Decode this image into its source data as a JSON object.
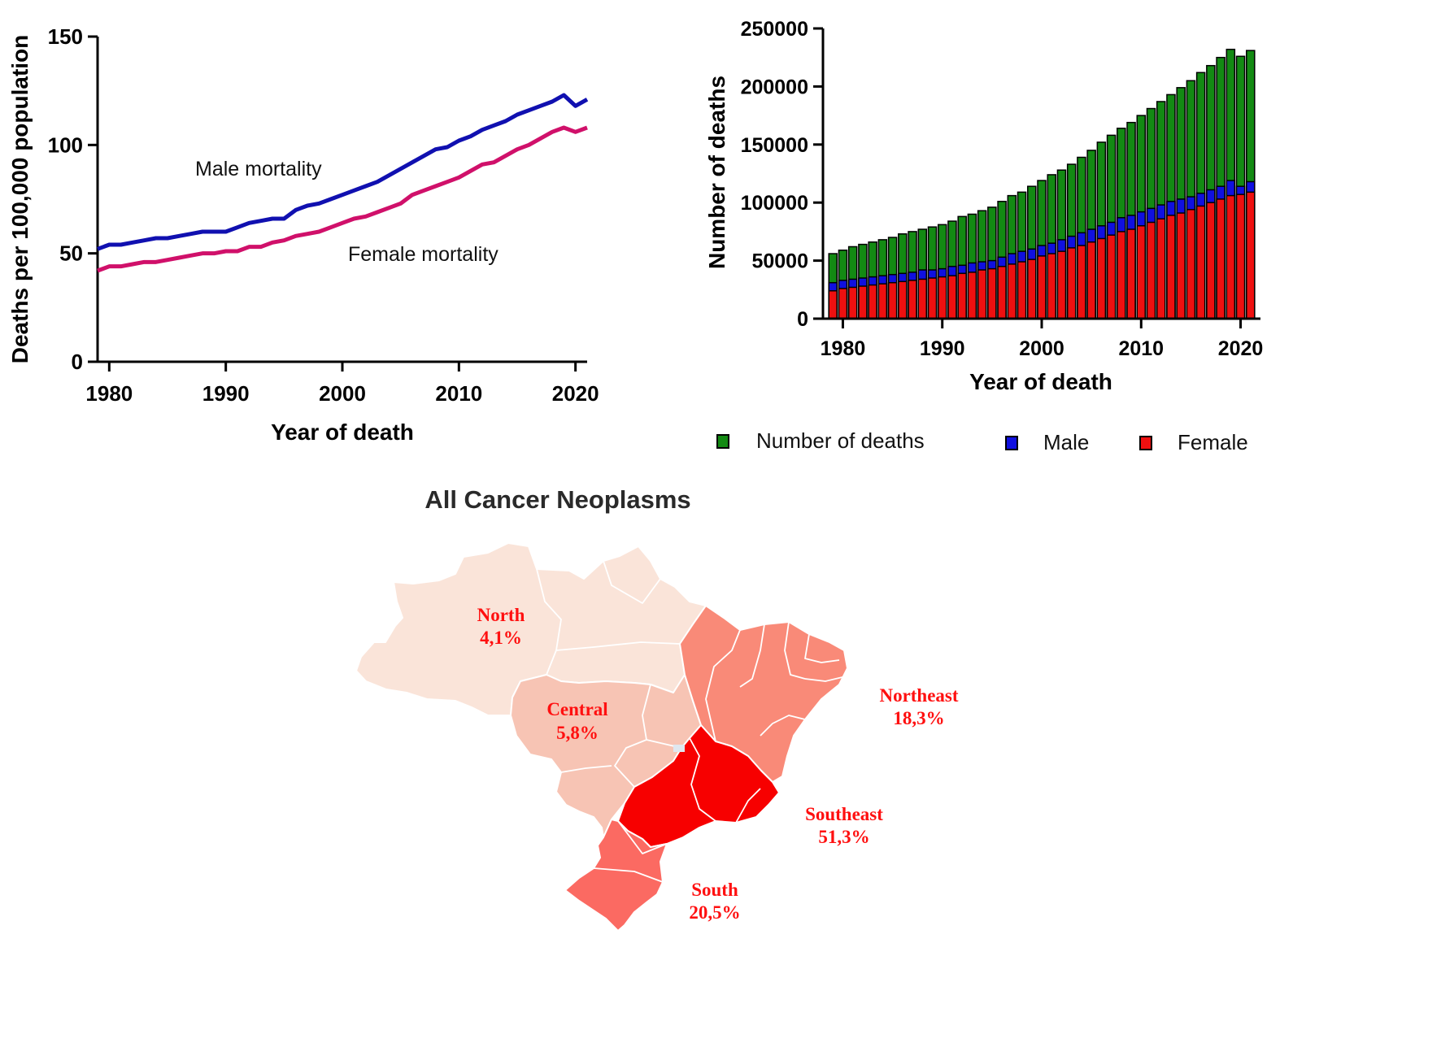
{
  "chart_data": [
    {
      "type": "line",
      "title": "",
      "xlabel": "Year of death",
      "ylabel": "Deaths per 100,000 population",
      "xlim": [
        1979,
        2021
      ],
      "ylim": [
        0,
        150
      ],
      "xticks": [
        "1980",
        "1990",
        "2000",
        "2010",
        "2020"
      ],
      "yticks": [
        "0",
        "50",
        "100",
        "150"
      ],
      "x": [
        1979,
        1980,
        1981,
        1982,
        1983,
        1984,
        1985,
        1986,
        1987,
        1988,
        1989,
        1990,
        1991,
        1992,
        1993,
        1994,
        1995,
        1996,
        1997,
        1998,
        1999,
        2000,
        2001,
        2002,
        2003,
        2004,
        2005,
        2006,
        2007,
        2008,
        2009,
        2010,
        2011,
        2012,
        2013,
        2014,
        2015,
        2016,
        2017,
        2018,
        2019,
        2020,
        2021
      ],
      "series": [
        {
          "name": "Male mortality",
          "color": "#1010b0",
          "values": [
            52,
            54,
            54,
            55,
            56,
            57,
            57,
            58,
            59,
            60,
            60,
            60,
            62,
            64,
            65,
            66,
            66,
            70,
            72,
            73,
            75,
            77,
            79,
            81,
            83,
            86,
            89,
            92,
            95,
            98,
            99,
            102,
            104,
            107,
            109,
            111,
            114,
            116,
            118,
            120,
            123,
            118,
            121
          ]
        },
        {
          "name": "Female mortality",
          "color": "#d0106a",
          "values": [
            42,
            44,
            44,
            45,
            46,
            46,
            47,
            48,
            49,
            50,
            50,
            51,
            51,
            53,
            53,
            55,
            56,
            58,
            59,
            60,
            62,
            64,
            66,
            67,
            69,
            71,
            73,
            77,
            79,
            81,
            83,
            85,
            88,
            91,
            92,
            95,
            98,
            100,
            103,
            106,
            108,
            106,
            108
          ]
        }
      ],
      "annotations": [
        "Male mortality",
        "Female mortality"
      ]
    },
    {
      "type": "bar",
      "title": "",
      "xlabel": "Year of death",
      "ylabel": "Number of deaths",
      "xlim": [
        1978,
        2022
      ],
      "ylim": [
        0,
        250000
      ],
      "xticks": [
        "1980",
        "1990",
        "2000",
        "2010",
        "2020"
      ],
      "yticks": [
        "0",
        "50000",
        "100000",
        "150000",
        "200000",
        "250000"
      ],
      "legend": [
        "Number of deaths",
        "Male",
        "Female"
      ],
      "legend_position": "bottom",
      "x": [
        1979,
        1980,
        1981,
        1982,
        1983,
        1984,
        1985,
        1986,
        1987,
        1988,
        1989,
        1990,
        1991,
        1992,
        1993,
        1994,
        1995,
        1996,
        1997,
        1998,
        1999,
        2000,
        2001,
        2002,
        2003,
        2004,
        2005,
        2006,
        2007,
        2008,
        2009,
        2010,
        2011,
        2012,
        2013,
        2014,
        2015,
        2016,
        2017,
        2018,
        2019,
        2020,
        2021
      ],
      "series": [
        {
          "name": "Number of deaths",
          "color": "#138a13",
          "values": [
            56000,
            59000,
            62000,
            64000,
            66000,
            68000,
            70000,
            73000,
            75000,
            77000,
            79000,
            81000,
            84000,
            88000,
            90000,
            93000,
            96000,
            101000,
            106000,
            109000,
            114000,
            119000,
            124000,
            128000,
            133000,
            139000,
            145000,
            152000,
            158000,
            164000,
            169000,
            175000,
            181000,
            187000,
            193000,
            199000,
            205000,
            212000,
            218000,
            225000,
            232000,
            226000,
            231000
          ]
        },
        {
          "name": "Male",
          "color": "#1010e0",
          "values": [
            31000,
            33000,
            34000,
            35000,
            36000,
            37000,
            38000,
            39000,
            40000,
            42000,
            42000,
            43000,
            45000,
            46000,
            48000,
            49000,
            50000,
            53000,
            56000,
            58000,
            60000,
            63000,
            65000,
            68000,
            71000,
            74000,
            77000,
            80000,
            83000,
            87000,
            89000,
            92000,
            95000,
            98000,
            101000,
            103000,
            105000,
            108000,
            111000,
            114000,
            119000,
            114000,
            118000
          ]
        },
        {
          "name": "Female",
          "color": "#ee1010",
          "values": [
            24000,
            26000,
            27000,
            28000,
            29000,
            30000,
            31000,
            32000,
            33000,
            34000,
            35000,
            36000,
            37000,
            39000,
            40000,
            42000,
            43000,
            45000,
            47000,
            49000,
            51000,
            54000,
            56000,
            58000,
            61000,
            63000,
            66000,
            69000,
            72000,
            75000,
            77000,
            80000,
            83000,
            86000,
            89000,
            91000,
            94000,
            97000,
            100000,
            103000,
            106000,
            107000,
            109000
          ]
        }
      ]
    }
  ],
  "map": {
    "title": "All Cancer Neoplasms",
    "regions": [
      {
        "name": "North",
        "value": "4,1%",
        "color": "#fae4d9"
      },
      {
        "name": "Central",
        "value": "5,8%",
        "color": "#f7c4b4"
      },
      {
        "name": "Northeast",
        "value": "18,3%",
        "color": "#f98a78"
      },
      {
        "name": "Southeast",
        "value": "51,3%",
        "color": "#f70000"
      },
      {
        "name": "South",
        "value": "20,5%",
        "color": "#fb6a62"
      }
    ]
  }
}
